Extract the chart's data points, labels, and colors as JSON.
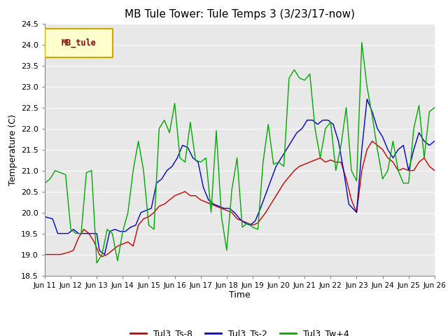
{
  "title": "MB Tule Tower: Tule Temps 3 (3/23/17-now)",
  "xlabel": "Time",
  "ylabel": "Temperature (C)",
  "ylim": [
    18.5,
    24.5
  ],
  "xlim": [
    0,
    15
  ],
  "fig_bg_color": "#ffffff",
  "plot_bg_color": "#e8e8e8",
  "grid_color": "#ffffff",
  "series": {
    "Tul3_Ts-8": {
      "color": "#cc0000",
      "points": [
        [
          0.0,
          19.0
        ],
        [
          0.3,
          19.0
        ],
        [
          0.6,
          19.0
        ],
        [
          0.9,
          19.05
        ],
        [
          1.1,
          19.1
        ],
        [
          1.3,
          19.4
        ],
        [
          1.5,
          19.6
        ],
        [
          1.7,
          19.5
        ],
        [
          1.9,
          19.3
        ],
        [
          2.0,
          19.15
        ],
        [
          2.1,
          19.0
        ],
        [
          2.2,
          18.95
        ],
        [
          2.4,
          19.0
        ],
        [
          2.6,
          19.1
        ],
        [
          2.8,
          19.2
        ],
        [
          3.0,
          19.25
        ],
        [
          3.2,
          19.3
        ],
        [
          3.4,
          19.2
        ],
        [
          3.6,
          19.7
        ],
        [
          3.8,
          19.85
        ],
        [
          4.0,
          19.9
        ],
        [
          4.2,
          20.0
        ],
        [
          4.4,
          20.15
        ],
        [
          4.6,
          20.2
        ],
        [
          4.8,
          20.3
        ],
        [
          5.0,
          20.4
        ],
        [
          5.2,
          20.45
        ],
        [
          5.4,
          20.5
        ],
        [
          5.6,
          20.4
        ],
        [
          5.8,
          20.4
        ],
        [
          6.0,
          20.3
        ],
        [
          6.2,
          20.25
        ],
        [
          6.4,
          20.2
        ],
        [
          6.6,
          20.15
        ],
        [
          6.8,
          20.1
        ],
        [
          7.0,
          20.05
        ],
        [
          7.2,
          20.0
        ],
        [
          7.4,
          19.85
        ],
        [
          7.6,
          19.8
        ],
        [
          7.8,
          19.75
        ],
        [
          8.0,
          19.7
        ],
        [
          8.2,
          19.75
        ],
        [
          8.5,
          20.0
        ],
        [
          8.8,
          20.3
        ],
        [
          9.0,
          20.5
        ],
        [
          9.2,
          20.7
        ],
        [
          9.4,
          20.85
        ],
        [
          9.6,
          21.0
        ],
        [
          9.8,
          21.1
        ],
        [
          10.0,
          21.15
        ],
        [
          10.2,
          21.2
        ],
        [
          10.4,
          21.25
        ],
        [
          10.6,
          21.3
        ],
        [
          10.8,
          21.2
        ],
        [
          11.0,
          21.25
        ],
        [
          11.2,
          21.2
        ],
        [
          11.4,
          21.2
        ],
        [
          11.6,
          20.8
        ],
        [
          11.8,
          20.3
        ],
        [
          12.0,
          20.0
        ],
        [
          12.2,
          21.0
        ],
        [
          12.4,
          21.5
        ],
        [
          12.6,
          21.7
        ],
        [
          12.8,
          21.6
        ],
        [
          13.0,
          21.5
        ],
        [
          13.2,
          21.3
        ],
        [
          13.4,
          21.2
        ],
        [
          13.6,
          21.0
        ],
        [
          13.8,
          21.05
        ],
        [
          14.0,
          21.0
        ],
        [
          14.2,
          21.0
        ],
        [
          14.4,
          21.2
        ],
        [
          14.6,
          21.3
        ],
        [
          14.8,
          21.1
        ],
        [
          15.0,
          21.0
        ]
      ]
    },
    "Tul3_Ts-2": {
      "color": "#0000cc",
      "points": [
        [
          0.0,
          19.9
        ],
        [
          0.3,
          19.85
        ],
        [
          0.5,
          19.5
        ],
        [
          0.7,
          19.5
        ],
        [
          0.9,
          19.5
        ],
        [
          1.1,
          19.6
        ],
        [
          1.3,
          19.5
        ],
        [
          1.5,
          19.5
        ],
        [
          1.7,
          19.5
        ],
        [
          1.9,
          19.5
        ],
        [
          2.0,
          19.5
        ],
        [
          2.1,
          19.1
        ],
        [
          2.3,
          19.0
        ],
        [
          2.5,
          19.55
        ],
        [
          2.7,
          19.6
        ],
        [
          2.9,
          19.55
        ],
        [
          3.1,
          19.55
        ],
        [
          3.3,
          19.65
        ],
        [
          3.5,
          19.7
        ],
        [
          3.7,
          20.0
        ],
        [
          3.9,
          20.05
        ],
        [
          4.1,
          20.1
        ],
        [
          4.3,
          20.7
        ],
        [
          4.5,
          20.8
        ],
        [
          4.7,
          21.0
        ],
        [
          4.9,
          21.1
        ],
        [
          5.1,
          21.3
        ],
        [
          5.3,
          21.6
        ],
        [
          5.5,
          21.55
        ],
        [
          5.7,
          21.3
        ],
        [
          5.9,
          21.2
        ],
        [
          6.1,
          20.6
        ],
        [
          6.3,
          20.3
        ],
        [
          6.5,
          20.2
        ],
        [
          6.7,
          20.15
        ],
        [
          6.9,
          20.1
        ],
        [
          7.1,
          20.1
        ],
        [
          7.3,
          20.0
        ],
        [
          7.5,
          19.85
        ],
        [
          7.7,
          19.75
        ],
        [
          7.9,
          19.7
        ],
        [
          8.1,
          19.8
        ],
        [
          8.3,
          20.1
        ],
        [
          8.6,
          20.6
        ],
        [
          8.9,
          21.1
        ],
        [
          9.1,
          21.3
        ],
        [
          9.3,
          21.5
        ],
        [
          9.5,
          21.7
        ],
        [
          9.7,
          21.9
        ],
        [
          9.9,
          22.0
        ],
        [
          10.1,
          22.2
        ],
        [
          10.3,
          22.2
        ],
        [
          10.5,
          22.1
        ],
        [
          10.7,
          22.2
        ],
        [
          10.9,
          22.2
        ],
        [
          11.1,
          22.1
        ],
        [
          11.3,
          21.7
        ],
        [
          11.5,
          21.0
        ],
        [
          11.7,
          20.2
        ],
        [
          12.0,
          20.0
        ],
        [
          12.2,
          21.5
        ],
        [
          12.4,
          22.7
        ],
        [
          12.6,
          22.4
        ],
        [
          12.8,
          22.0
        ],
        [
          13.0,
          21.8
        ],
        [
          13.2,
          21.5
        ],
        [
          13.4,
          21.3
        ],
        [
          13.6,
          21.5
        ],
        [
          13.8,
          21.6
        ],
        [
          14.0,
          21.0
        ],
        [
          14.2,
          21.5
        ],
        [
          14.4,
          21.9
        ],
        [
          14.6,
          21.7
        ],
        [
          14.8,
          21.6
        ],
        [
          15.0,
          21.7
        ]
      ]
    },
    "Tul3_Tw+4": {
      "color": "#00aa00",
      "points": [
        [
          0.0,
          20.7
        ],
        [
          0.2,
          20.8
        ],
        [
          0.4,
          21.0
        ],
        [
          0.6,
          20.95
        ],
        [
          0.8,
          20.9
        ],
        [
          1.0,
          19.6
        ],
        [
          1.2,
          19.5
        ],
        [
          1.4,
          19.5
        ],
        [
          1.6,
          20.95
        ],
        [
          1.8,
          21.0
        ],
        [
          2.0,
          18.8
        ],
        [
          2.2,
          19.0
        ],
        [
          2.4,
          19.6
        ],
        [
          2.6,
          19.5
        ],
        [
          2.8,
          18.85
        ],
        [
          3.0,
          19.55
        ],
        [
          3.2,
          20.0
        ],
        [
          3.4,
          21.0
        ],
        [
          3.6,
          21.7
        ],
        [
          3.8,
          21.0
        ],
        [
          4.0,
          19.7
        ],
        [
          4.2,
          19.6
        ],
        [
          4.4,
          22.0
        ],
        [
          4.6,
          22.2
        ],
        [
          4.8,
          21.9
        ],
        [
          5.0,
          22.6
        ],
        [
          5.2,
          21.3
        ],
        [
          5.4,
          21.2
        ],
        [
          5.6,
          22.15
        ],
        [
          5.8,
          21.25
        ],
        [
          6.0,
          21.2
        ],
        [
          6.2,
          21.3
        ],
        [
          6.4,
          20.0
        ],
        [
          6.6,
          21.95
        ],
        [
          6.8,
          19.9
        ],
        [
          7.0,
          19.1
        ],
        [
          7.2,
          20.55
        ],
        [
          7.4,
          21.3
        ],
        [
          7.6,
          19.65
        ],
        [
          7.8,
          19.75
        ],
        [
          8.0,
          19.65
        ],
        [
          8.2,
          19.6
        ],
        [
          8.4,
          21.2
        ],
        [
          8.6,
          22.1
        ],
        [
          8.8,
          21.15
        ],
        [
          9.0,
          21.2
        ],
        [
          9.2,
          21.1
        ],
        [
          9.4,
          23.2
        ],
        [
          9.6,
          23.4
        ],
        [
          9.8,
          23.2
        ],
        [
          10.0,
          23.15
        ],
        [
          10.2,
          23.3
        ],
        [
          10.4,
          22.0
        ],
        [
          10.6,
          21.3
        ],
        [
          10.8,
          22.0
        ],
        [
          11.0,
          22.15
        ],
        [
          11.2,
          21.0
        ],
        [
          11.4,
          21.6
        ],
        [
          11.6,
          22.5
        ],
        [
          11.8,
          21.0
        ],
        [
          12.0,
          20.75
        ],
        [
          12.2,
          24.05
        ],
        [
          12.4,
          23.0
        ],
        [
          12.6,
          22.3
        ],
        [
          12.8,
          21.5
        ],
        [
          13.0,
          20.8
        ],
        [
          13.2,
          21.0
        ],
        [
          13.4,
          21.7
        ],
        [
          13.6,
          21.0
        ],
        [
          13.8,
          20.7
        ],
        [
          14.0,
          20.7
        ],
        [
          14.2,
          22.0
        ],
        [
          14.4,
          22.55
        ],
        [
          14.6,
          21.3
        ],
        [
          14.8,
          22.4
        ],
        [
          15.0,
          22.5
        ]
      ]
    }
  },
  "x_ticks": [
    0,
    1,
    2,
    3,
    4,
    5,
    6,
    7,
    8,
    9,
    10,
    11,
    12,
    13,
    14,
    15
  ],
  "x_tick_labels": [
    "Jun 11",
    "Jun 12",
    "Jun 13",
    "Jun 14",
    "Jun 15",
    "Jun 16",
    "Jun 17",
    "Jun 18",
    "Jun 19",
    "Jun 20",
    "Jun 21",
    "Jun 22",
    "Jun 23",
    "Jun 24",
    "Jun 25",
    "Jun 26"
  ],
  "y_ticks": [
    18.5,
    19.0,
    19.5,
    20.0,
    20.5,
    21.0,
    21.5,
    22.0,
    22.5,
    23.0,
    23.5,
    24.0,
    24.5
  ],
  "legend_box_color": "#ffffcc",
  "legend_box_edge": "#ccaa00",
  "series_order": [
    "Tul3_Ts-8",
    "Tul3_Ts-2",
    "Tul3_Tw+4"
  ]
}
